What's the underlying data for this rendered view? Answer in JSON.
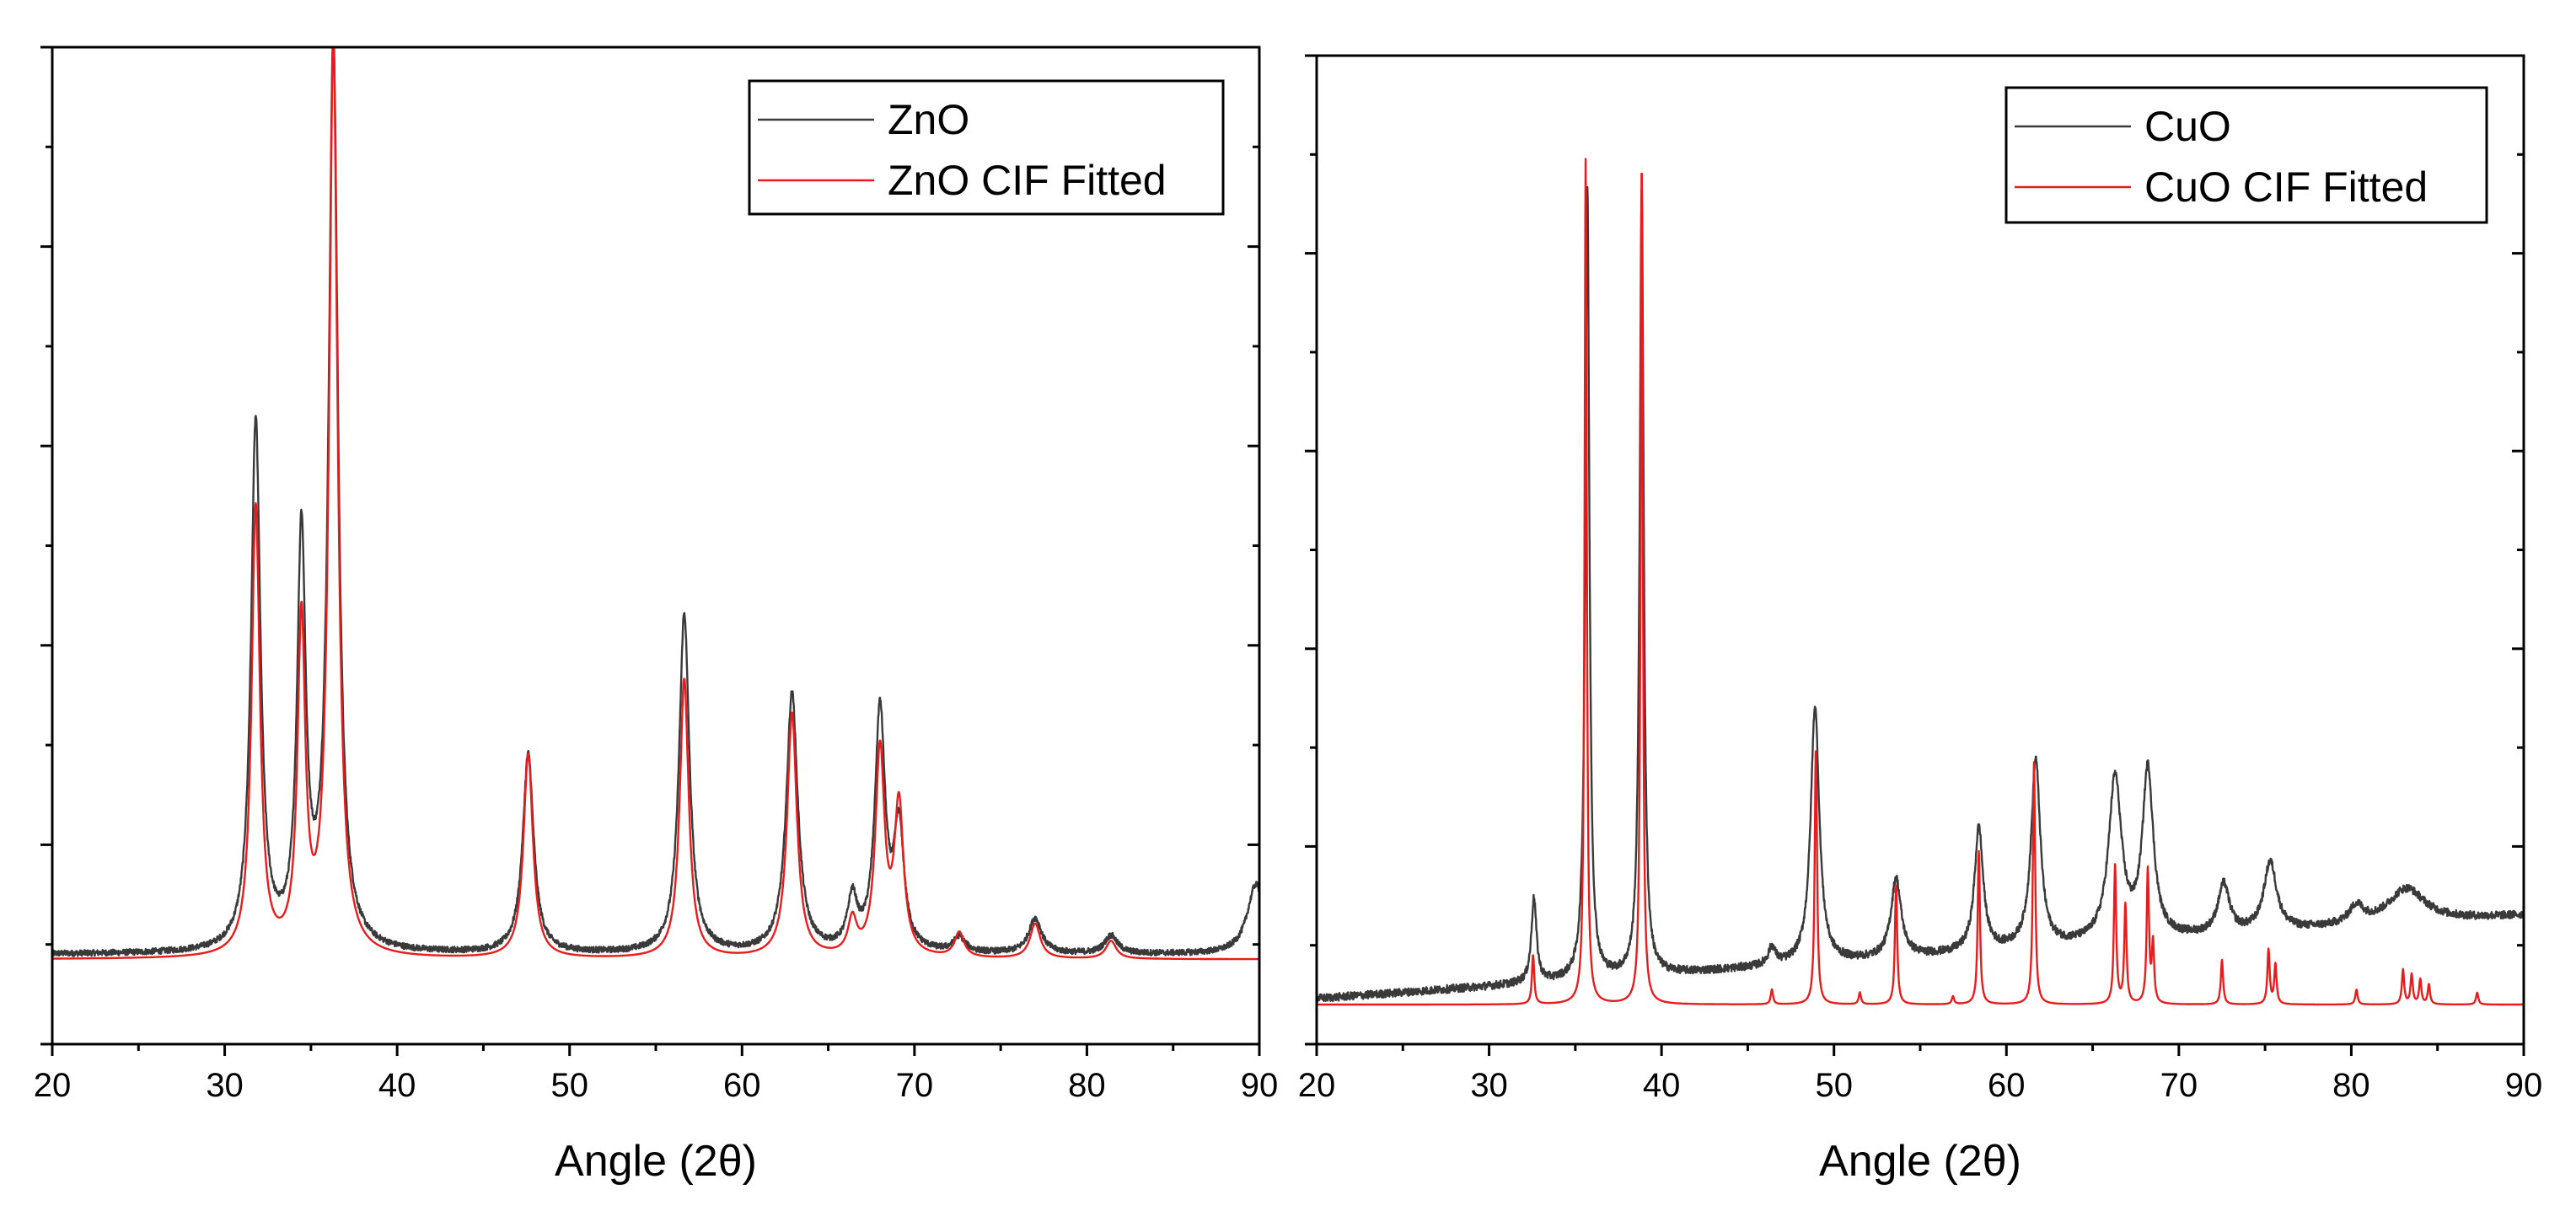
{
  "chart_data": [
    {
      "type": "line",
      "id": "zno",
      "title": "",
      "xlabel": "Angle (2θ)",
      "ylabel": "",
      "xlim": [
        20,
        90
      ],
      "ylim": [
        0,
        1
      ],
      "xticks": [
        20,
        30,
        40,
        50,
        60,
        70,
        80,
        90
      ],
      "xtick_labels": [
        "20",
        "30",
        "40",
        "50",
        "60",
        "70",
        "80",
        "90"
      ],
      "y_tick_count": 11,
      "legend_position": "top-right",
      "series": [
        {
          "name": "ZnO",
          "color": "#3a3a3a",
          "baseline": 0.09,
          "baseline_slope": 0.0,
          "noise": 0.003,
          "peaks": [
            [
              31.8,
              0.53,
              0.33
            ],
            [
              34.45,
              0.41,
              0.3
            ],
            [
              36.3,
              0.91,
              0.33
            ],
            [
              47.6,
              0.2,
              0.38
            ],
            [
              56.65,
              0.34,
              0.36
            ],
            [
              62.9,
              0.26,
              0.4
            ],
            [
              66.4,
              0.05,
              0.34
            ],
            [
              68.0,
              0.24,
              0.36
            ],
            [
              69.1,
              0.12,
              0.35
            ],
            [
              72.6,
              0.015,
              0.4
            ],
            [
              77.0,
              0.035,
              0.45
            ],
            [
              81.4,
              0.018,
              0.45
            ],
            [
              89.8,
              0.07,
              0.6
            ]
          ]
        },
        {
          "name": "ZnO CIF Fitted",
          "color": "#e81c1c",
          "baseline": 0.085,
          "baseline_slope": 0.0,
          "noise": 0.0,
          "peaks": [
            [
              31.8,
              0.45,
              0.29
            ],
            [
              34.45,
              0.33,
              0.27
            ],
            [
              36.3,
              0.915,
              0.3
            ],
            [
              47.6,
              0.205,
              0.33
            ],
            [
              56.65,
              0.28,
              0.31
            ],
            [
              62.9,
              0.245,
              0.34
            ],
            [
              66.4,
              0.035,
              0.3
            ],
            [
              68.0,
              0.205,
              0.32
            ],
            [
              69.1,
              0.15,
              0.32
            ],
            [
              72.6,
              0.025,
              0.33
            ],
            [
              77.0,
              0.035,
              0.36
            ],
            [
              81.4,
              0.018,
              0.36
            ]
          ]
        }
      ]
    },
    {
      "type": "line",
      "id": "cuo",
      "title": "",
      "xlabel": "Angle (2θ)",
      "ylabel": "",
      "xlim": [
        20,
        90
      ],
      "ylim": [
        0,
        1
      ],
      "xticks": [
        20,
        30,
        40,
        50,
        60,
        70,
        80,
        90
      ],
      "xtick_labels": [
        "20",
        "30",
        "40",
        "50",
        "60",
        "70",
        "80",
        "90"
      ],
      "y_tick_count": 11,
      "legend_position": "top-right",
      "series": [
        {
          "name": "CuO",
          "color": "#3a3a3a",
          "baseline": 0.046,
          "baseline_slope": 0.0012,
          "noise": 0.004,
          "peaks": [
            [
              32.6,
              0.085,
              0.18
            ],
            [
              35.7,
              0.8,
              0.14
            ],
            [
              38.85,
              0.8,
              0.14
            ],
            [
              46.4,
              0.018,
              0.25
            ],
            [
              48.9,
              0.26,
              0.3
            ],
            [
              53.6,
              0.08,
              0.35
            ],
            [
              58.4,
              0.125,
              0.3
            ],
            [
              61.7,
              0.19,
              0.32
            ],
            [
              66.3,
              0.165,
              0.45
            ],
            [
              68.2,
              0.17,
              0.38
            ],
            [
              72.6,
              0.05,
              0.4
            ],
            [
              75.3,
              0.07,
              0.45
            ],
            [
              80.3,
              0.018,
              0.5
            ],
            [
              83.2,
              0.035,
              1.3
            ]
          ]
        },
        {
          "name": "CuO CIF Fitted",
          "color": "#e81c1c",
          "baseline": 0.04,
          "baseline_slope": 0.0,
          "noise": 0.0,
          "peaks": [
            [
              32.55,
              0.05,
              0.08
            ],
            [
              35.6,
              0.855,
              0.075
            ],
            [
              38.85,
              0.855,
              0.075
            ],
            [
              46.4,
              0.015,
              0.08
            ],
            [
              48.95,
              0.26,
              0.08
            ],
            [
              51.5,
              0.012,
              0.08
            ],
            [
              53.6,
              0.12,
              0.08
            ],
            [
              56.9,
              0.008,
              0.08
            ],
            [
              58.4,
              0.155,
              0.08
            ],
            [
              61.6,
              0.245,
              0.08
            ],
            [
              66.3,
              0.14,
              0.08
            ],
            [
              66.9,
              0.1,
              0.08
            ],
            [
              68.2,
              0.135,
              0.08
            ],
            [
              68.5,
              0.06,
              0.08
            ],
            [
              72.5,
              0.045,
              0.08
            ],
            [
              75.2,
              0.055,
              0.08
            ],
            [
              75.6,
              0.04,
              0.08
            ],
            [
              80.3,
              0.015,
              0.08
            ],
            [
              83.0,
              0.035,
              0.08
            ],
            [
              83.5,
              0.03,
              0.08
            ],
            [
              84.0,
              0.025,
              0.08
            ],
            [
              84.5,
              0.02,
              0.08
            ],
            [
              87.3,
              0.012,
              0.08
            ]
          ]
        }
      ]
    }
  ]
}
